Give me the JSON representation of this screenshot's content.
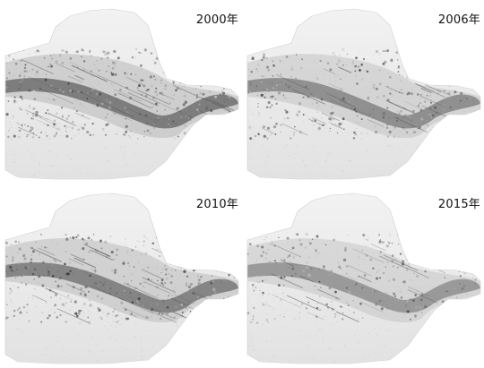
{
  "panels": [
    {
      "label": "2000年",
      "density": 1.0
    },
    {
      "label": "2006年",
      "density": 0.8
    },
    {
      "label": "2010年",
      "density": 0.9
    },
    {
      "label": "2015年",
      "density": 0.7
    }
  ],
  "colors": {
    "background": "#ffffff",
    "light_terrain": "#e6e6e6",
    "mid_terrain": "#b8b8b8",
    "dark_terrain": "#3a3a3a",
    "label_text": "#111111"
  }
}
